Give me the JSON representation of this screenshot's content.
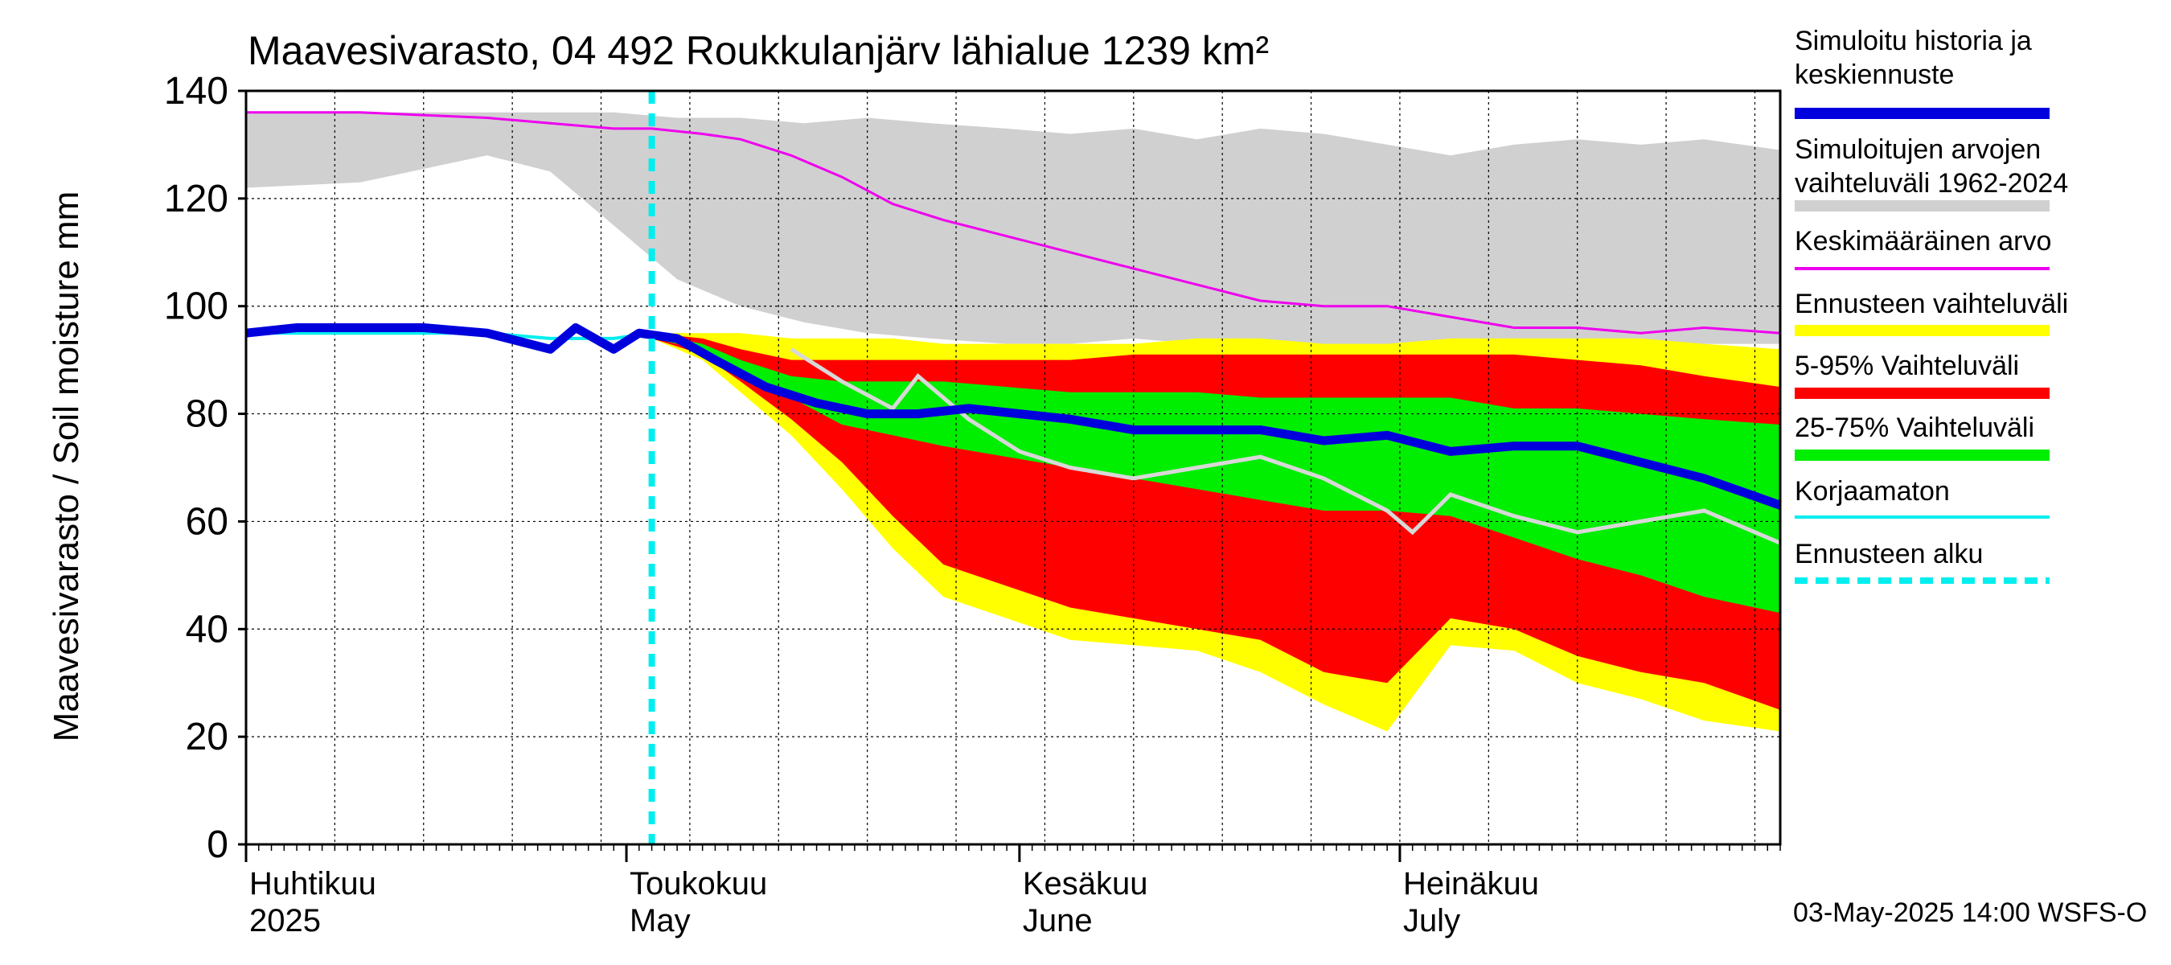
{
  "chart_data": {
    "type": "area",
    "title": "Maavesivarasto, 04 492 Roukkulanjärv lähialue 1239 km²",
    "ylabel": "Maavesivarasto / Soil moisture   mm",
    "ylim": [
      0,
      140
    ],
    "y_ticks": [
      0,
      20,
      40,
      60,
      80,
      100,
      120,
      140
    ],
    "x_domain": [
      "2025-04-01",
      "2025-07-31"
    ],
    "forecast_start": "2025-05-03",
    "timestamp": "03-May-2025 14:00 WSFS-O",
    "month_labels": [
      {
        "fi": "Huhtikuu",
        "en": "2025",
        "date": "2025-04-01"
      },
      {
        "fi": "Toukokuu",
        "en": "May",
        "date": "2025-05-01"
      },
      {
        "fi": "Kesäkuu",
        "en": "June",
        "date": "2025-06-01"
      },
      {
        "fi": "Heinäkuu",
        "en": "July",
        "date": "2025-07-01"
      }
    ],
    "legend": [
      {
        "label": "Simuloitu historia ja keskiennuste",
        "color": "#0000dd",
        "style": "thick-line"
      },
      {
        "label": "Simuloitujen arvojen vaihteluväli 1962-2024",
        "color": "#d0d0d0",
        "style": "thick-line"
      },
      {
        "label": "Keskimääräinen arvo",
        "color": "#ee00ee",
        "style": "line"
      },
      {
        "label": "Ennusteen vaihteluväli",
        "color": "#ffff00",
        "style": "thick-line"
      },
      {
        "label": "5-95% Vaihteluväli",
        "color": "#ff0000",
        "style": "thick-line"
      },
      {
        "label": "25-75% Vaihteluväli",
        "color": "#00ee00",
        "style": "thick-line"
      },
      {
        "label": "Korjaamaton",
        "color": "#00eeee",
        "style": "line"
      },
      {
        "label": "Ennusteen alku",
        "color": "#00eeee",
        "style": "dashed-line"
      }
    ],
    "series": {
      "history_range": {
        "x": [
          "2025-04-01",
          "2025-04-10",
          "2025-04-20",
          "2025-04-25",
          "2025-04-30",
          "2025-05-05",
          "2025-05-10",
          "2025-05-15",
          "2025-05-20",
          "2025-05-25",
          "2025-05-31",
          "2025-06-05",
          "2025-06-10",
          "2025-06-15",
          "2025-06-20",
          "2025-06-25",
          "2025-06-30",
          "2025-07-05",
          "2025-07-10",
          "2025-07-15",
          "2025-07-20",
          "2025-07-25",
          "2025-07-31"
        ],
        "upper": [
          136,
          136,
          136,
          136,
          136,
          135,
          135,
          134,
          135,
          134,
          133,
          132,
          133,
          131,
          133,
          132,
          130,
          128,
          130,
          131,
          130,
          131,
          129
        ],
        "lower": [
          122,
          123,
          128,
          125,
          115,
          105,
          100,
          97,
          95,
          94,
          93,
          93,
          94,
          93,
          92,
          93,
          92,
          93,
          92,
          93,
          93,
          93,
          93
        ]
      },
      "forecast_5_95_yellow": {
        "x": [
          "2025-05-03",
          "2025-05-07",
          "2025-05-10",
          "2025-05-14",
          "2025-05-18",
          "2025-05-22",
          "2025-05-26",
          "2025-05-31",
          "2025-06-05",
          "2025-06-10",
          "2025-06-15",
          "2025-06-20",
          "2025-06-25",
          "2025-06-30",
          "2025-07-05",
          "2025-07-10",
          "2025-07-15",
          "2025-07-20",
          "2025-07-25",
          "2025-07-31"
        ],
        "upper": [
          95,
          95,
          95,
          94,
          94,
          94,
          93,
          93,
          93,
          93,
          94,
          94,
          93,
          93,
          94,
          94,
          94,
          94,
          93,
          92
        ],
        "lower": [
          94,
          90,
          84,
          76,
          66,
          55,
          46,
          42,
          38,
          37,
          36,
          32,
          26,
          21,
          37,
          36,
          30,
          27,
          23,
          21
        ]
      },
      "forecast_5_95_red": {
        "x": [
          "2025-05-03",
          "2025-05-07",
          "2025-05-10",
          "2025-05-14",
          "2025-05-18",
          "2025-05-22",
          "2025-05-26",
          "2025-05-31",
          "2025-06-05",
          "2025-06-10",
          "2025-06-15",
          "2025-06-20",
          "2025-06-25",
          "2025-06-30",
          "2025-07-05",
          "2025-07-10",
          "2025-07-15",
          "2025-07-20",
          "2025-07-25",
          "2025-07-31"
        ],
        "upper": [
          95,
          94,
          92,
          90,
          90,
          90,
          90,
          90,
          90,
          91,
          91,
          91,
          91,
          91,
          91,
          91,
          90,
          89,
          87,
          85
        ],
        "lower": [
          94,
          91,
          86,
          79,
          71,
          61,
          52,
          48,
          44,
          42,
          40,
          38,
          32,
          30,
          42,
          40,
          35,
          32,
          30,
          25
        ]
      },
      "forecast_25_75": {
        "x": [
          "2025-05-03",
          "2025-05-07",
          "2025-05-10",
          "2025-05-14",
          "2025-05-18",
          "2025-05-22",
          "2025-05-26",
          "2025-05-31",
          "2025-06-05",
          "2025-06-10",
          "2025-06-15",
          "2025-06-20",
          "2025-06-25",
          "2025-06-30",
          "2025-07-05",
          "2025-07-10",
          "2025-07-15",
          "2025-07-20",
          "2025-07-25",
          "2025-07-31"
        ],
        "upper": [
          95,
          93,
          90,
          87,
          86,
          86,
          86,
          85,
          84,
          84,
          84,
          83,
          83,
          83,
          83,
          81,
          81,
          80,
          79,
          78
        ],
        "lower": [
          94,
          92,
          87,
          83,
          78,
          76,
          74,
          72,
          70,
          68,
          66,
          64,
          62,
          62,
          61,
          57,
          53,
          50,
          46,
          43
        ]
      },
      "simulated_history_and_median": {
        "x": [
          "2025-04-01",
          "2025-04-05",
          "2025-04-10",
          "2025-04-15",
          "2025-04-20",
          "2025-04-25",
          "2025-04-27",
          "2025-04-30",
          "2025-05-02",
          "2025-05-05",
          "2025-05-08",
          "2025-05-12",
          "2025-05-16",
          "2025-05-20",
          "2025-05-24",
          "2025-05-28",
          "2025-06-01",
          "2025-06-05",
          "2025-06-10",
          "2025-06-15",
          "2025-06-20",
          "2025-06-25",
          "2025-06-30",
          "2025-07-05",
          "2025-07-10",
          "2025-07-15",
          "2025-07-20",
          "2025-07-25",
          "2025-07-31"
        ],
        "values": [
          95,
          96,
          96,
          96,
          95,
          92,
          96,
          92,
          95,
          94,
          90,
          85,
          82,
          80,
          80,
          81,
          80,
          79,
          77,
          77,
          77,
          75,
          76,
          73,
          74,
          74,
          71,
          68,
          63
        ]
      },
      "uncorrected": {
        "x": [
          "2025-04-01",
          "2025-04-05",
          "2025-04-10",
          "2025-04-15",
          "2025-04-20",
          "2025-04-25",
          "2025-04-30",
          "2025-05-03"
        ],
        "values": [
          95,
          95,
          95,
          95,
          95,
          94,
          94,
          95
        ]
      },
      "mean_value": {
        "x": [
          "2025-04-01",
          "2025-04-10",
          "2025-04-20",
          "2025-04-25",
          "2025-04-30",
          "2025-05-03",
          "2025-05-07",
          "2025-05-10",
          "2025-05-14",
          "2025-05-18",
          "2025-05-22",
          "2025-05-26",
          "2025-05-31",
          "2025-06-05",
          "2025-06-10",
          "2025-06-15",
          "2025-06-20",
          "2025-06-25",
          "2025-06-30",
          "2025-07-05",
          "2025-07-10",
          "2025-07-15",
          "2025-07-20",
          "2025-07-25",
          "2025-07-31"
        ],
        "values": [
          136,
          136,
          135,
          134,
          133,
          133,
          132,
          131,
          128,
          124,
          119,
          116,
          113,
          110,
          107,
          104,
          101,
          100,
          100,
          98,
          96,
          96,
          95,
          96,
          95
        ]
      },
      "scenario_gray": {
        "x": [
          "2025-05-14",
          "2025-05-18",
          "2025-05-22",
          "2025-05-24",
          "2025-05-28",
          "2025-06-01",
          "2025-06-05",
          "2025-06-10",
          "2025-06-15",
          "2025-06-20",
          "2025-06-25",
          "2025-06-30",
          "2025-07-02",
          "2025-07-05",
          "2025-07-10",
          "2025-07-15",
          "2025-07-20",
          "2025-07-25",
          "2025-07-31"
        ],
        "values": [
          92,
          86,
          81,
          87,
          79,
          73,
          70,
          68,
          70,
          72,
          68,
          62,
          58,
          65,
          61,
          58,
          60,
          62,
          56
        ]
      }
    }
  }
}
